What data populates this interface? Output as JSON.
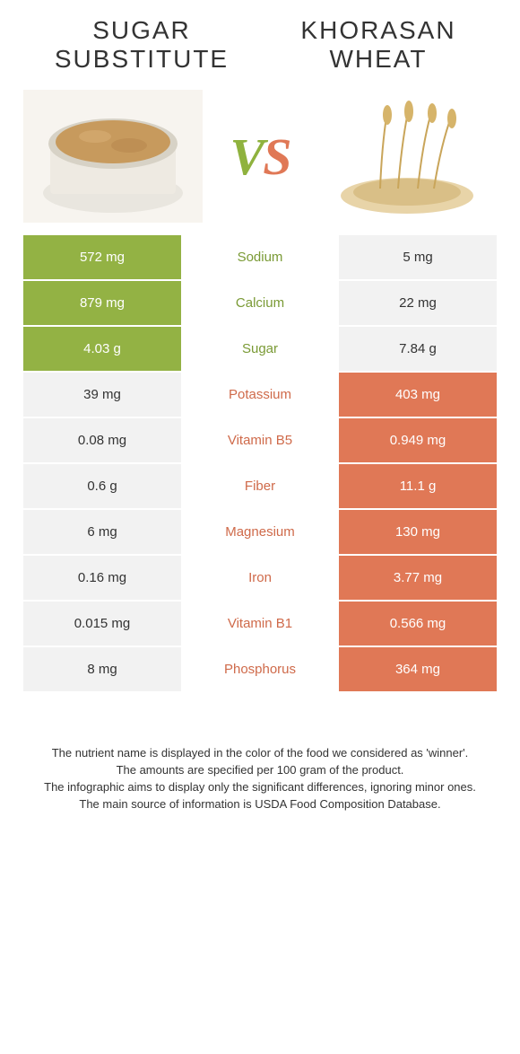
{
  "colors": {
    "left_win_bg": "#93b244",
    "right_win_bg": "#e07856",
    "neutral_bg": "#f2f2f2",
    "mid_green": "#7a9a35",
    "mid_orange": "#cf6a4a",
    "page_bg": "#ffffff"
  },
  "header": {
    "left_title_line1": "SUGAR",
    "left_title_line2": "SUBSTITUTE",
    "right_title_line1": "KHORASAN",
    "right_title_line2": "WHEAT",
    "vs_v": "V",
    "vs_s": "S"
  },
  "rows": [
    {
      "nutrient": "Sodium",
      "left": "572 mg",
      "right": "5 mg",
      "winner": "left"
    },
    {
      "nutrient": "Calcium",
      "left": "879 mg",
      "right": "22 mg",
      "winner": "left"
    },
    {
      "nutrient": "Sugar",
      "left": "4.03 g",
      "right": "7.84 g",
      "winner": "left"
    },
    {
      "nutrient": "Potassium",
      "left": "39 mg",
      "right": "403 mg",
      "winner": "right"
    },
    {
      "nutrient": "Vitamin B5",
      "left": "0.08 mg",
      "right": "0.949 mg",
      "winner": "right"
    },
    {
      "nutrient": "Fiber",
      "left": "0.6 g",
      "right": "11.1 g",
      "winner": "right"
    },
    {
      "nutrient": "Magnesium",
      "left": "6 mg",
      "right": "130 mg",
      "winner": "right"
    },
    {
      "nutrient": "Iron",
      "left": "0.16 mg",
      "right": "3.77 mg",
      "winner": "right"
    },
    {
      "nutrient": "Vitamin B1",
      "left": "0.015 mg",
      "right": "0.566 mg",
      "winner": "right"
    },
    {
      "nutrient": "Phosphorus",
      "left": "8 mg",
      "right": "364 mg",
      "winner": "right"
    }
  ],
  "footer": {
    "line1": "The nutrient name is displayed in the color of the food we considered as 'winner'.",
    "line2": "The amounts are specified per 100 gram of the product.",
    "line3": "The infographic aims to display only the significant differences, ignoring minor ones.",
    "line4": "The main source of information is USDA Food Composition Database."
  }
}
